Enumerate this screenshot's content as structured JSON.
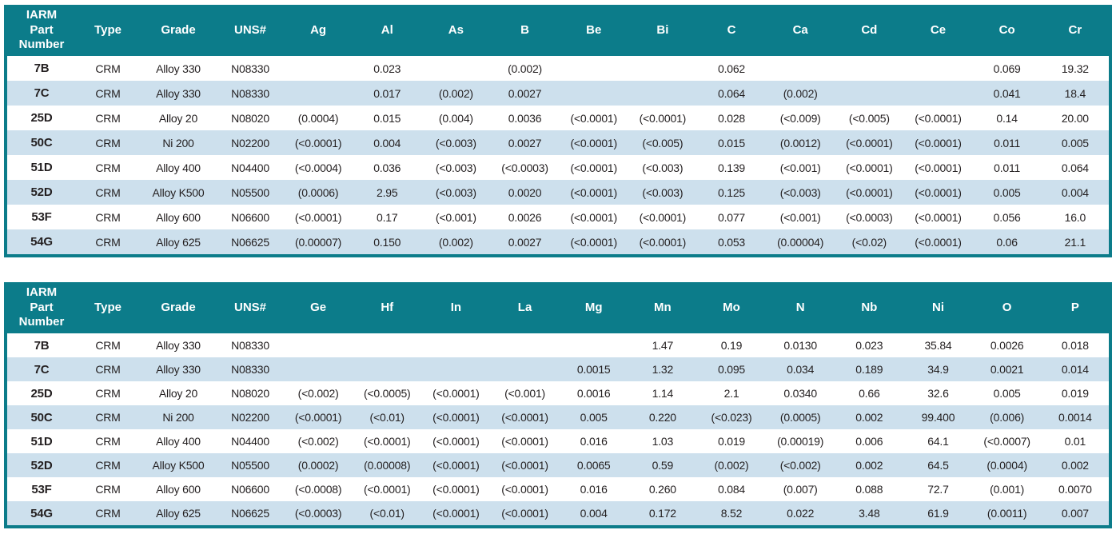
{
  "colors": {
    "header_bg": "#0c7c8a",
    "row_stripe_bg": "#cde0ed",
    "row_plain_bg": "#ffffff",
    "header_text": "#ffffff",
    "body_text": "#231f20"
  },
  "tables": [
    {
      "name": "composition-table-ag-cr",
      "columns": [
        "IARM\nPart\nNumber",
        "Type",
        "Grade",
        "UNS#",
        "Ag",
        "Al",
        "As",
        "B",
        "Be",
        "Bi",
        "C",
        "Ca",
        "Cd",
        "Ce",
        "Co",
        "Cr"
      ],
      "rows": [
        [
          "7B",
          "CRM",
          "Alloy 330",
          "N08330",
          "",
          "0.023",
          "",
          "(0.002)",
          "",
          "",
          "0.062",
          "",
          "",
          "",
          "0.069",
          "19.32"
        ],
        [
          "7C",
          "CRM",
          "Alloy 330",
          "N08330",
          "",
          "0.017",
          "(0.002)",
          "0.0027",
          "",
          "",
          "0.064",
          "(0.002)",
          "",
          "",
          "0.041",
          "18.4"
        ],
        [
          "25D",
          "CRM",
          "Alloy 20",
          "N08020",
          "(0.0004)",
          "0.015",
          "(0.004)",
          "0.0036",
          "(<0.0001)",
          "(<0.0001)",
          "0.028",
          "(<0.009)",
          "(<0.005)",
          "(<0.0001)",
          "0.14",
          "20.00"
        ],
        [
          "50C",
          "CRM",
          "Ni 200",
          "N02200",
          "(<0.0001)",
          "0.004",
          "(<0.003)",
          "0.0027",
          "(<0.0001)",
          "(<0.005)",
          "0.015",
          "(0.0012)",
          "(<0.0001)",
          "(<0.0001)",
          "0.011",
          "0.005"
        ],
        [
          "51D",
          "CRM",
          "Alloy 400",
          "N04400",
          "(<0.0004)",
          "0.036",
          "(<0.003)",
          "(<0.0003)",
          "(<0.0001)",
          "(<0.003)",
          "0.139",
          "(<0.001)",
          "(<0.0001)",
          "(<0.0001)",
          "0.011",
          "0.064"
        ],
        [
          "52D",
          "CRM",
          "Alloy K500",
          "N05500",
          "(0.0006)",
          "2.95",
          "(<0.003)",
          "0.0020",
          "(<0.0001)",
          "(<0.003)",
          "0.125",
          "(<0.003)",
          "(<0.0001)",
          "(<0.0001)",
          "0.005",
          "0.004"
        ],
        [
          "53F",
          "CRM",
          "Alloy 600",
          "N06600",
          "(<0.0001)",
          "0.17",
          "(<0.001)",
          "0.0026",
          "(<0.0001)",
          "(<0.0001)",
          "0.077",
          "(<0.001)",
          "(<0.0003)",
          "(<0.0001)",
          "0.056",
          "16.0"
        ],
        [
          "54G",
          "CRM",
          "Alloy 625",
          "N06625",
          "(0.00007)",
          "0.150",
          "(0.002)",
          "0.0027",
          "(<0.0001)",
          "(<0.0001)",
          "0.053",
          "(0.00004)",
          "(<0.02)",
          "(<0.0001)",
          "0.06",
          "21.1"
        ]
      ]
    },
    {
      "name": "composition-table-ge-p",
      "columns": [
        "IARM\nPart\nNumber",
        "Type",
        "Grade",
        "UNS#",
        "Ge",
        "Hf",
        "In",
        "La",
        "Mg",
        "Mn",
        "Mo",
        "N",
        "Nb",
        "Ni",
        "O",
        "P"
      ],
      "rows": [
        [
          "7B",
          "CRM",
          "Alloy 330",
          "N08330",
          "",
          "",
          "",
          "",
          "",
          "1.47",
          "0.19",
          "0.0130",
          "0.023",
          "35.84",
          "0.0026",
          "0.018"
        ],
        [
          "7C",
          "CRM",
          "Alloy 330",
          "N08330",
          "",
          "",
          "",
          "",
          "0.0015",
          "1.32",
          "0.095",
          "0.034",
          "0.189",
          "34.9",
          "0.0021",
          "0.014"
        ],
        [
          "25D",
          "CRM",
          "Alloy 20",
          "N08020",
          "(<0.002)",
          "(<0.0005)",
          "(<0.0001)",
          "(<0.001)",
          "0.0016",
          "1.14",
          "2.1",
          "0.0340",
          "0.66",
          "32.6",
          "0.005",
          "0.019"
        ],
        [
          "50C",
          "CRM",
          "Ni 200",
          "N02200",
          "(<0.0001)",
          "(<0.01)",
          "(<0.0001)",
          "(<0.0001)",
          "0.005",
          "0.220",
          "(<0.023)",
          "(0.0005)",
          "0.002",
          "99.400",
          "(0.006)",
          "0.0014"
        ],
        [
          "51D",
          "CRM",
          "Alloy 400",
          "N04400",
          "(<0.002)",
          "(<0.0001)",
          "(<0.0001)",
          "(<0.0001)",
          "0.016",
          "1.03",
          "0.019",
          "(0.00019)",
          "0.006",
          "64.1",
          "(<0.0007)",
          "0.01"
        ],
        [
          "52D",
          "CRM",
          "Alloy K500",
          "N05500",
          "(0.0002)",
          "(0.00008)",
          "(<0.0001)",
          "(<0.0001)",
          "0.0065",
          "0.59",
          "(0.002)",
          "(<0.002)",
          "0.002",
          "64.5",
          "(0.0004)",
          "0.002"
        ],
        [
          "53F",
          "CRM",
          "Alloy 600",
          "N06600",
          "(<0.0008)",
          "(<0.0001)",
          "(<0.0001)",
          "(<0.0001)",
          "0.016",
          "0.260",
          "0.084",
          "(0.007)",
          "0.088",
          "72.7",
          "(0.001)",
          "0.0070"
        ],
        [
          "54G",
          "CRM",
          "Alloy 625",
          "N06625",
          "(<0.0003)",
          "(<0.01)",
          "(<0.0001)",
          "(<0.0001)",
          "0.004",
          "0.172",
          "8.52",
          "0.022",
          "3.48",
          "61.9",
          "(0.0011)",
          "0.007"
        ]
      ]
    }
  ]
}
